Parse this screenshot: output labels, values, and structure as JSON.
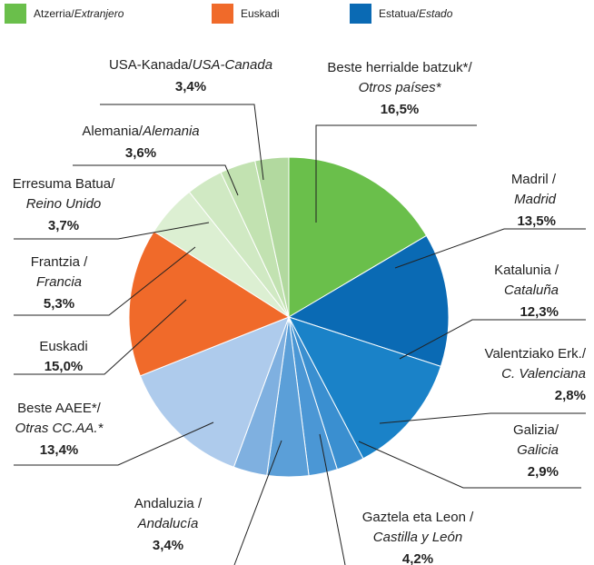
{
  "chart_data": {
    "type": "pie",
    "legend": [
      {
        "name": "Atzerria/",
        "name_es": "Extranjero",
        "color": "#6abf4b"
      },
      {
        "name": "Euskadi",
        "color": "#f06a2a"
      },
      {
        "name": "Estatua/",
        "name_es": "Estado",
        "color": "#0a6ab4"
      }
    ],
    "categories": [
      "Beste herrialde batzuk*/",
      "Madril /",
      "Katalunia /",
      "Valentziako Erk./",
      "Galizia/",
      "Gaztela eta Leon /",
      "Andaluzia /",
      "Beste AAEE*/",
      "Euskadi",
      "Frantzia /",
      "Erresuma Batua/",
      "Alemania/",
      "USA-Kanada/"
    ],
    "categories_es": [
      "Otros países*",
      "Madrid",
      "Cataluña",
      "C. Valenciana",
      "Galicia",
      "Castilla y León",
      "Andalucía",
      "Otras CC.AA.*",
      null,
      "Francia",
      "Reino Unido",
      "Alemania",
      "USA-Canada"
    ],
    "values": [
      16.5,
      13.5,
      12.3,
      2.8,
      2.9,
      4.2,
      3.4,
      13.4,
      15.0,
      5.3,
      3.7,
      3.6,
      3.4
    ],
    "value_labels": [
      "16,5%",
      "13,5%",
      "12,3%",
      "2,8%",
      "2,9%",
      "4,2%",
      "3,4%",
      "13,4%",
      "15,0%",
      "5,3%",
      "3,7%",
      "3,6%",
      "3,4%"
    ],
    "colors": [
      "#6abf4b",
      "#0a6ab4",
      "#1a82c8",
      "#3a8fd0",
      "#4b97d5",
      "#5b9fd8",
      "#7fb0e0",
      "#aecbec",
      "#f06a2a",
      "#dcefd2",
      "#d0e9c3",
      "#c2e2b1",
      "#b2d99f"
    ]
  }
}
